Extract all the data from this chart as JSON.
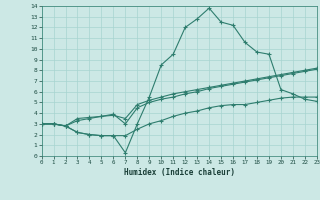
{
  "xlabel": "Humidex (Indice chaleur)",
  "bg_color": "#cce8e5",
  "grid_color": "#a8d4d0",
  "line_color": "#2e7d6e",
  "xlim": [
    0,
    23
  ],
  "ylim": [
    0,
    14
  ],
  "xticks": [
    0,
    1,
    2,
    3,
    4,
    5,
    6,
    7,
    8,
    9,
    10,
    11,
    12,
    13,
    14,
    15,
    16,
    17,
    18,
    19,
    20,
    21,
    22,
    23
  ],
  "yticks": [
    0,
    1,
    2,
    3,
    4,
    5,
    6,
    7,
    8,
    9,
    10,
    11,
    12,
    13,
    14
  ],
  "line1_x": [
    0,
    1,
    2,
    3,
    4,
    5,
    6,
    7,
    8,
    9,
    10,
    11,
    12,
    13,
    14,
    15,
    16,
    17,
    18,
    19,
    20,
    21,
    22,
    23
  ],
  "line1_y": [
    3.0,
    3.0,
    2.8,
    2.2,
    2.0,
    1.9,
    1.9,
    0.3,
    3.0,
    5.5,
    8.5,
    9.5,
    12.0,
    12.8,
    13.8,
    12.5,
    12.2,
    10.6,
    9.7,
    9.5,
    6.2,
    5.8,
    5.3,
    5.1
  ],
  "line2_x": [
    0,
    1,
    2,
    3,
    4,
    5,
    6,
    7,
    8,
    9,
    10,
    11,
    12,
    13,
    14,
    15,
    16,
    17,
    18,
    19,
    20,
    21,
    22,
    23
  ],
  "line2_y": [
    3.0,
    3.0,
    2.8,
    3.5,
    3.6,
    3.7,
    3.8,
    3.5,
    4.8,
    5.2,
    5.5,
    5.8,
    6.0,
    6.2,
    6.4,
    6.6,
    6.8,
    7.0,
    7.2,
    7.4,
    7.6,
    7.8,
    8.0,
    8.2
  ],
  "line3_x": [
    0,
    1,
    2,
    3,
    4,
    5,
    6,
    7,
    8,
    9,
    10,
    11,
    12,
    13,
    14,
    15,
    16,
    17,
    18,
    19,
    20,
    21,
    22,
    23
  ],
  "line3_y": [
    3.0,
    3.0,
    2.8,
    3.3,
    3.5,
    3.7,
    3.9,
    3.0,
    4.5,
    5.0,
    5.3,
    5.5,
    5.8,
    6.0,
    6.3,
    6.5,
    6.7,
    6.9,
    7.1,
    7.3,
    7.5,
    7.7,
    7.9,
    8.1
  ],
  "line4_x": [
    0,
    1,
    2,
    3,
    4,
    5,
    6,
    7,
    8,
    9,
    10,
    11,
    12,
    13,
    14,
    15,
    16,
    17,
    18,
    19,
    20,
    21,
    22,
    23
  ],
  "line4_y": [
    3.0,
    3.0,
    2.8,
    2.2,
    2.0,
    1.9,
    1.9,
    1.9,
    2.5,
    3.0,
    3.3,
    3.7,
    4.0,
    4.2,
    4.5,
    4.7,
    4.8,
    4.8,
    5.0,
    5.2,
    5.4,
    5.5,
    5.5,
    5.5
  ]
}
